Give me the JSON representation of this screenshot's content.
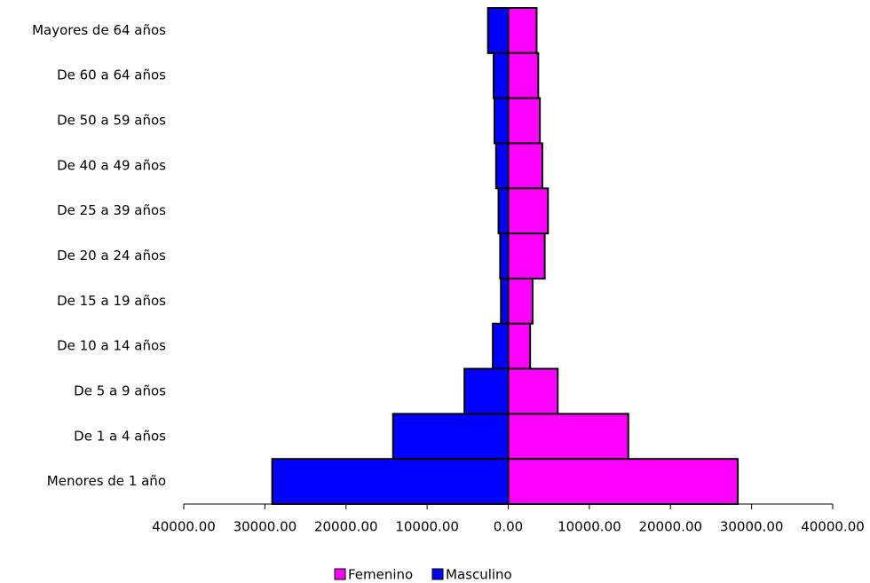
{
  "chart_data": {
    "type": "bar",
    "orientation": "horizontal",
    "stacked": true,
    "categories": [
      "Mayores de 64 años",
      "De 60 a 64 años",
      "De 50 a 59 años",
      "De 40 a 49 años",
      "De 25 a 39 años",
      "De 20 a 24 años",
      "De 15 a 19 años",
      "De 10 a 14 años",
      "De 5 a 9 años",
      "De 1 a 4 años",
      "Menores de 1 año"
    ],
    "series": [
      {
        "name": "Femenino",
        "color": "#ff00ff",
        "values": [
          3500,
          3700,
          3900,
          4200,
          4900,
          4500,
          3000,
          2700,
          6100,
          14800,
          28300
        ]
      },
      {
        "name": "Masculino",
        "color": "#0000ff",
        "values": [
          -2500,
          -1800,
          -1700,
          -1500,
          -1200,
          -1000,
          -900,
          -1900,
          -5400,
          -14200,
          -29100
        ]
      }
    ],
    "xlim": [
      -40000,
      40000
    ],
    "xticks": [
      {
        "value": -40000,
        "label": "40000.00"
      },
      {
        "value": -30000,
        "label": "30000.00"
      },
      {
        "value": -20000,
        "label": "20000.00"
      },
      {
        "value": -10000,
        "label": "10000.00"
      },
      {
        "value": 0,
        "label": "0.00"
      },
      {
        "value": 10000,
        "label": "10000.00"
      },
      {
        "value": 20000,
        "label": "20000.00"
      },
      {
        "value": 30000,
        "label": "30000.00"
      },
      {
        "value": 40000,
        "label": "40000.00"
      }
    ],
    "legend": "bottom"
  }
}
